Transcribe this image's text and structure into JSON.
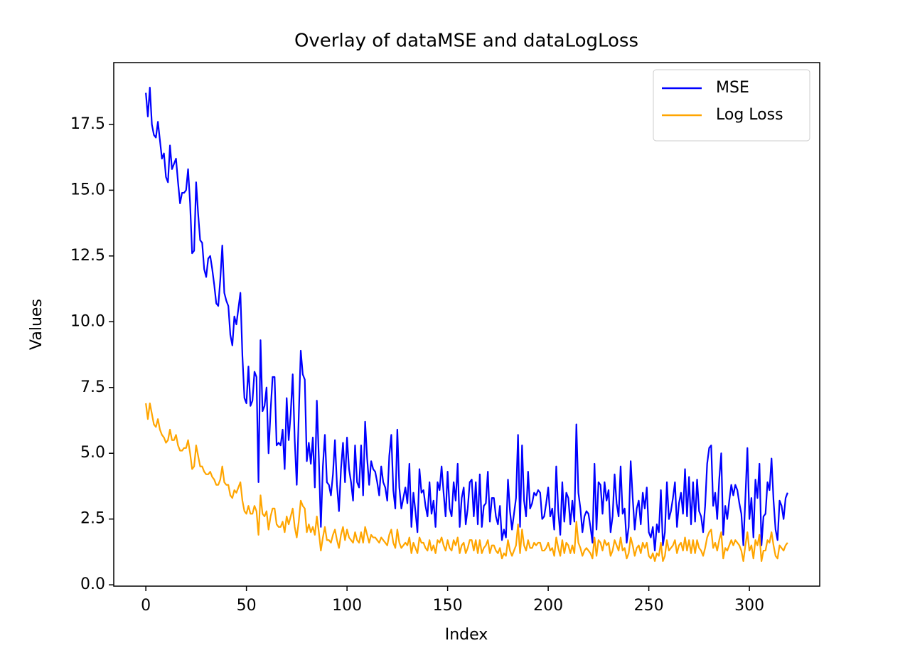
{
  "chart_data": {
    "type": "line",
    "title": "Overlay of dataMSE and dataLogLoss",
    "xlabel": "Index",
    "ylabel": "Values",
    "x": [
      0,
      1,
      2,
      3,
      4,
      5,
      6,
      7,
      8,
      9,
      10,
      11,
      12,
      13,
      14,
      15,
      16,
      17,
      18,
      19,
      20,
      21,
      22,
      23,
      24,
      25,
      26,
      27,
      28,
      29,
      30,
      31,
      32,
      33,
      34,
      35,
      36,
      37,
      38,
      39,
      40,
      41,
      42,
      43,
      44,
      45,
      46,
      47,
      48,
      49,
      50,
      51,
      52,
      53,
      54,
      55,
      56,
      57,
      58,
      59,
      60,
      61,
      62,
      63,
      64,
      65,
      66,
      67,
      68,
      69,
      70,
      71,
      72,
      73,
      74,
      75,
      76,
      77,
      78,
      79,
      80,
      81,
      82,
      83,
      84,
      85,
      86,
      87,
      88,
      89,
      90,
      91,
      92,
      93,
      94,
      95,
      96,
      97,
      98,
      99,
      100,
      101,
      102,
      103,
      104,
      105,
      106,
      107,
      108,
      109,
      110,
      111,
      112,
      113,
      114,
      115,
      116,
      117,
      118,
      119,
      120,
      121,
      122,
      123,
      124,
      125,
      126,
      127,
      128,
      129,
      130,
      131,
      132,
      133,
      134,
      135,
      136,
      137,
      138,
      139,
      140,
      141,
      142,
      143,
      144,
      145,
      146,
      147,
      148,
      149,
      150,
      151,
      152,
      153,
      154,
      155,
      156,
      157,
      158,
      159,
      160,
      161,
      162,
      163,
      164,
      165,
      166,
      167,
      168,
      169,
      170,
      171,
      172,
      173,
      174,
      175,
      176,
      177,
      178,
      179,
      180,
      181,
      182,
      183,
      184,
      185,
      186,
      187,
      188,
      189,
      190,
      191,
      192,
      193,
      194,
      195,
      196,
      197,
      198,
      199,
      200,
      201,
      202,
      203,
      204,
      205,
      206,
      207,
      208,
      209,
      210,
      211,
      212,
      213,
      214,
      215,
      216,
      217,
      218,
      219,
      220,
      221,
      222,
      223,
      224,
      225,
      226,
      227,
      228,
      229,
      230,
      231,
      232,
      233,
      234,
      235,
      236,
      237,
      238,
      239,
      240,
      241,
      242,
      243,
      244,
      245,
      246,
      247,
      248,
      249,
      250,
      251,
      252,
      253,
      254,
      255,
      256,
      257,
      258,
      259,
      260,
      261,
      262,
      263,
      264,
      265,
      266,
      267,
      268,
      269,
      270,
      271,
      272,
      273,
      274,
      275,
      276,
      277,
      278,
      279,
      280,
      281,
      282,
      283,
      284,
      285,
      286,
      287,
      288,
      289,
      290,
      291,
      292,
      293,
      294,
      295,
      296,
      297,
      298,
      299,
      300,
      301,
      302,
      303,
      304,
      305,
      306,
      307,
      308,
      309,
      310,
      311,
      312,
      313,
      314,
      315,
      316,
      317,
      318,
      319
    ],
    "series": [
      {
        "name": "MSE",
        "color": "#0000ff",
        "values": [
          18.7,
          17.8,
          18.9,
          17.5,
          17.1,
          17.0,
          17.6,
          16.9,
          16.2,
          16.4,
          15.5,
          15.3,
          16.7,
          15.8,
          16.0,
          16.2,
          15.3,
          14.5,
          14.9,
          14.9,
          15.0,
          15.8,
          14.5,
          12.6,
          12.7,
          15.3,
          14.1,
          13.1,
          13.0,
          12.0,
          11.7,
          12.4,
          12.5,
          12.0,
          11.4,
          10.7,
          10.6,
          11.6,
          12.9,
          11.1,
          10.8,
          10.6,
          9.5,
          9.1,
          10.2,
          9.9,
          10.5,
          11.1,
          8.7,
          7.1,
          6.9,
          8.3,
          6.8,
          7.0,
          8.1,
          7.9,
          3.9,
          9.3,
          6.6,
          6.8,
          7.5,
          5.0,
          6.6,
          7.9,
          7.9,
          5.3,
          5.4,
          5.3,
          5.9,
          4.4,
          7.1,
          5.5,
          6.5,
          8.0,
          5.5,
          3.8,
          6.4,
          8.9,
          8.0,
          7.8,
          4.7,
          5.4,
          4.6,
          5.6,
          3.7,
          7.0,
          4.8,
          2.2,
          4.5,
          5.7,
          3.9,
          3.8,
          3.4,
          4.2,
          5.5,
          3.8,
          2.8,
          4.4,
          5.4,
          3.9,
          5.6,
          4.4,
          3.9,
          3.2,
          5.3,
          3.9,
          3.7,
          5.3,
          3.4,
          6.2,
          4.8,
          3.8,
          4.7,
          4.4,
          4.3,
          3.9,
          3.4,
          4.5,
          3.9,
          3.7,
          3.2,
          4.9,
          5.7,
          3.6,
          2.9,
          5.9,
          3.7,
          2.9,
          3.3,
          3.7,
          3.1,
          4.6,
          2.2,
          3.5,
          2.8,
          2.0,
          4.4,
          3.5,
          3.6,
          3.0,
          2.6,
          3.9,
          2.7,
          3.2,
          2.2,
          3.9,
          3.6,
          4.5,
          3.5,
          2.6,
          4.3,
          2.9,
          2.6,
          3.9,
          3.2,
          4.6,
          2.2,
          3.3,
          3.7,
          2.3,
          2.9,
          3.9,
          4.0,
          2.6,
          3.9,
          2.3,
          4.2,
          2.2,
          3.0,
          3.1,
          4.3,
          2.4,
          3.3,
          3.3,
          2.6,
          2.3,
          3.0,
          1.7,
          2.1,
          1.8,
          4.0,
          2.8,
          2.1,
          2.7,
          3.3,
          5.7,
          2.2,
          5.3,
          3.2,
          2.6,
          4.3,
          2.9,
          3.1,
          3.5,
          3.4,
          3.6,
          3.5,
          2.5,
          2.6,
          3.1,
          3.7,
          2.6,
          2.9,
          2.1,
          4.5,
          2.8,
          1.9,
          3.9,
          2.4,
          3.5,
          3.3,
          2.3,
          3.2,
          2.4,
          6.1,
          3.5,
          2.9,
          2.0,
          2.6,
          2.8,
          2.7,
          2.2,
          1.6,
          4.6,
          2.1,
          3.9,
          3.8,
          2.7,
          3.9,
          3.2,
          3.6,
          2.0,
          2.6,
          4.2,
          3.1,
          2.6,
          4.5,
          2.7,
          2.9,
          1.6,
          2.2,
          4.7,
          3.3,
          2.1,
          2.9,
          3.2,
          2.3,
          3.5,
          2.9,
          3.7,
          2.0,
          1.8,
          2.2,
          1.3,
          2.3,
          2.0,
          3.6,
          1.5,
          2.0,
          3.9,
          2.5,
          2.8,
          3.3,
          3.9,
          2.2,
          3.1,
          3.5,
          2.7,
          4.4,
          2.6,
          4.1,
          2.3,
          3.9,
          2.4,
          4.0,
          2.8,
          2.6,
          2.0,
          3.0,
          4.6,
          5.2,
          5.3,
          3.0,
          3.5,
          2.5,
          4.0,
          5.0,
          1.9,
          3.0,
          2.5,
          3.2,
          3.8,
          3.4,
          3.8,
          3.6,
          3.1,
          2.7,
          1.5,
          3.3,
          5.2,
          2.5,
          3.3,
          1.8,
          4.0,
          3.3,
          4.6,
          1.5,
          2.6,
          2.7,
          3.9,
          3.6,
          4.8,
          3.2,
          2.1,
          1.7,
          3.2,
          3.0,
          2.5,
          3.3,
          3.5
        ]
      },
      {
        "name": "Log Loss",
        "color": "#ffa500",
        "values": [
          6.9,
          6.3,
          6.9,
          6.5,
          6.1,
          6.0,
          6.3,
          5.9,
          5.7,
          5.6,
          5.4,
          5.5,
          5.9,
          5.5,
          5.5,
          5.7,
          5.3,
          5.1,
          5.1,
          5.2,
          5.2,
          5.5,
          5.0,
          4.4,
          4.5,
          5.3,
          4.9,
          4.5,
          4.5,
          4.3,
          4.2,
          4.2,
          4.3,
          4.1,
          4.0,
          3.8,
          3.8,
          4.0,
          4.5,
          3.9,
          3.8,
          3.8,
          3.4,
          3.3,
          3.6,
          3.5,
          3.7,
          3.9,
          3.2,
          2.8,
          2.7,
          3.0,
          2.7,
          2.7,
          3.0,
          2.8,
          1.9,
          3.4,
          2.7,
          2.6,
          2.8,
          2.1,
          2.6,
          2.9,
          2.9,
          2.3,
          2.2,
          2.2,
          2.4,
          2.0,
          2.6,
          2.3,
          2.6,
          2.9,
          2.2,
          1.8,
          2.4,
          3.2,
          3.0,
          2.9,
          2.0,
          2.3,
          2.0,
          2.2,
          1.9,
          2.6,
          2.0,
          1.3,
          1.8,
          2.2,
          1.7,
          1.7,
          1.6,
          1.9,
          2.1,
          1.7,
          1.4,
          1.9,
          2.2,
          1.7,
          2.1,
          1.8,
          1.7,
          1.6,
          2.0,
          1.7,
          1.6,
          2.0,
          1.6,
          2.2,
          1.9,
          1.6,
          1.9,
          1.8,
          1.8,
          1.7,
          1.6,
          1.8,
          1.7,
          1.6,
          1.5,
          1.9,
          2.1,
          1.6,
          1.4,
          2.1,
          1.6,
          1.4,
          1.5,
          1.6,
          1.5,
          1.8,
          1.2,
          1.6,
          1.4,
          1.2,
          1.8,
          1.6,
          1.6,
          1.4,
          1.3,
          1.7,
          1.3,
          1.5,
          1.2,
          1.7,
          1.6,
          1.8,
          1.5,
          1.3,
          1.7,
          1.4,
          1.3,
          1.7,
          1.5,
          1.8,
          1.2,
          1.5,
          1.6,
          1.2,
          1.4,
          1.7,
          1.7,
          1.3,
          1.7,
          1.2,
          1.7,
          1.2,
          1.4,
          1.5,
          1.7,
          1.2,
          1.5,
          1.5,
          1.3,
          1.2,
          1.4,
          1.0,
          1.2,
          1.1,
          1.7,
          1.3,
          1.1,
          1.3,
          1.5,
          2.3,
          1.2,
          2.1,
          1.5,
          1.3,
          1.7,
          1.4,
          1.4,
          1.6,
          1.5,
          1.6,
          1.6,
          1.3,
          1.3,
          1.4,
          1.6,
          1.3,
          1.4,
          1.1,
          1.8,
          1.4,
          1.1,
          1.7,
          1.2,
          1.6,
          1.5,
          1.2,
          1.5,
          1.2,
          2.4,
          1.6,
          1.4,
          1.1,
          1.3,
          1.4,
          1.3,
          1.2,
          1.0,
          1.8,
          1.1,
          1.7,
          1.6,
          1.3,
          1.7,
          1.5,
          1.6,
          1.1,
          1.3,
          1.7,
          1.5,
          1.3,
          1.8,
          1.3,
          1.4,
          1.0,
          1.2,
          1.8,
          1.5,
          1.1,
          1.4,
          1.5,
          1.2,
          1.6,
          1.4,
          1.6,
          1.1,
          1.0,
          1.2,
          0.9,
          1.2,
          1.1,
          1.6,
          0.9,
          1.1,
          1.7,
          1.3,
          1.4,
          1.5,
          1.7,
          1.2,
          1.5,
          1.6,
          1.3,
          1.8,
          1.3,
          1.7,
          1.2,
          1.7,
          1.2,
          1.7,
          1.4,
          1.3,
          1.1,
          1.4,
          1.8,
          2.0,
          2.1,
          1.4,
          1.6,
          1.3,
          1.7,
          2.0,
          1.0,
          1.4,
          1.3,
          1.5,
          1.7,
          1.5,
          1.7,
          1.6,
          1.5,
          1.3,
          0.9,
          1.5,
          2.0,
          1.3,
          1.5,
          1.0,
          1.7,
          1.5,
          1.9,
          0.9,
          1.3,
          1.3,
          1.7,
          1.6,
          2.0,
          1.5,
          1.1,
          1.0,
          1.5,
          1.4,
          1.3,
          1.5,
          1.6
        ]
      }
    ],
    "xlim": [
      -15.95,
      334.95
    ],
    "xticks": [
      0,
      50,
      100,
      150,
      200,
      250,
      300
    ],
    "ylim": [
      -0.05,
      19.85
    ],
    "yticks": [
      {
        "value": 0,
        "label": "0.0"
      },
      2.5,
      {
        "value": 5,
        "label": "5.0"
      },
      7.5,
      {
        "value": 10,
        "label": "10.0"
      },
      12.5,
      {
        "value": 15,
        "label": "15.0"
      },
      17.5
    ],
    "legend": "upper right",
    "grid": false
  }
}
